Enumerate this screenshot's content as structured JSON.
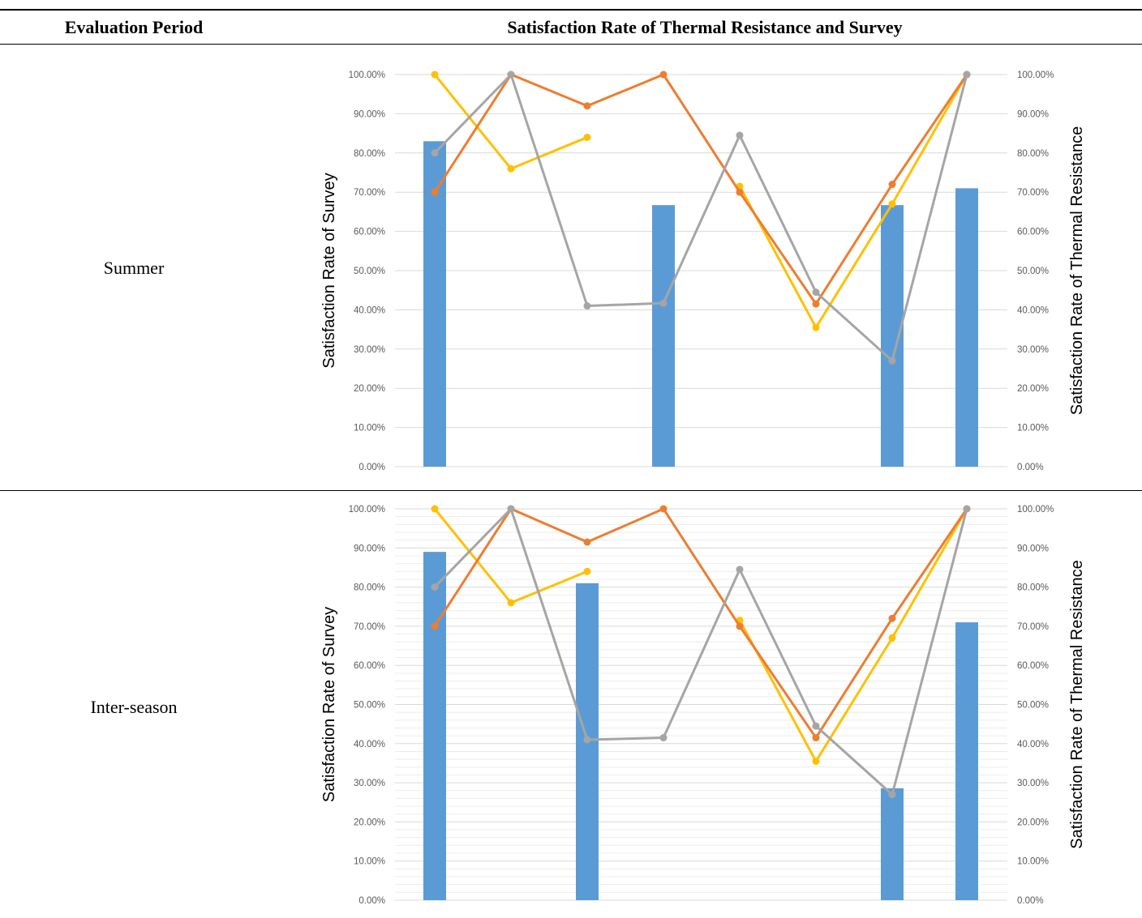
{
  "table": {
    "header": {
      "period": "Evaluation Period",
      "chart": "Satisfaction Rate of Thermal Resistance and Survey"
    },
    "rows": [
      {
        "label": "Summer"
      },
      {
        "label": "Inter-season"
      }
    ]
  },
  "chart_data": [
    {
      "type": "bar",
      "panel": "Summer",
      "title": "",
      "ylabel": "Satisfaction Rate of Survey",
      "y2label": "Satisfaction Rate of Thermal Resistance",
      "ylim": [
        0,
        100
      ],
      "y2lim": [
        0,
        100
      ],
      "yticks": [
        "0.00%",
        "10.00%",
        "20.00%",
        "30.00%",
        "40.00%",
        "50.00%",
        "60.00%",
        "70.00%",
        "80.00%",
        "90.00%",
        "100.00%"
      ],
      "grid": true,
      "categories": [
        "",
        "",
        "",
        "",
        "",
        "",
        "",
        ""
      ],
      "bars": [
        83,
        null,
        null,
        66.7,
        null,
        null,
        66.7,
        71
      ],
      "series": [
        {
          "color": "#ED7D31",
          "values": [
            70,
            100,
            92,
            100,
            70,
            41.5,
            72,
            100
          ]
        },
        {
          "color": "#A5A5A5",
          "values": [
            80,
            100,
            41,
            41.7,
            84.5,
            44.5,
            27,
            100
          ]
        },
        {
          "color": "#FFC000",
          "values": [
            100,
            76,
            84,
            null,
            71.5,
            35.5,
            67,
            100
          ]
        }
      ],
      "colors": {
        "bar": "#5B9BD5"
      }
    },
    {
      "type": "bar",
      "panel": "Inter-season",
      "title": "",
      "ylabel": "Satisfaction Rate of Survey",
      "y2label": "Satisfaction Rate of Thermal Resistance",
      "ylim": [
        0,
        100
      ],
      "y2lim": [
        0,
        100
      ],
      "yticks": [
        "0.00%",
        "10.00%",
        "20.00%",
        "30.00%",
        "40.00%",
        "50.00%",
        "60.00%",
        "70.00%",
        "80.00%",
        "90.00%",
        "100.00%"
      ],
      "grid": true,
      "categories": [
        "",
        "",
        "",
        "",
        "",
        "",
        "",
        ""
      ],
      "bars": [
        89,
        null,
        81,
        null,
        null,
        null,
        28.6,
        71
      ],
      "series": [
        {
          "color": "#ED7D31",
          "values": [
            70,
            100,
            91.5,
            100,
            70,
            41.5,
            72,
            100
          ]
        },
        {
          "color": "#A5A5A5",
          "values": [
            80,
            100,
            41,
            41.5,
            84.5,
            44.5,
            27,
            100
          ]
        },
        {
          "color": "#FFC000",
          "values": [
            100,
            76,
            84,
            null,
            71.5,
            35.5,
            67,
            100
          ]
        }
      ],
      "colors": {
        "bar": "#5B9BD5"
      }
    }
  ]
}
